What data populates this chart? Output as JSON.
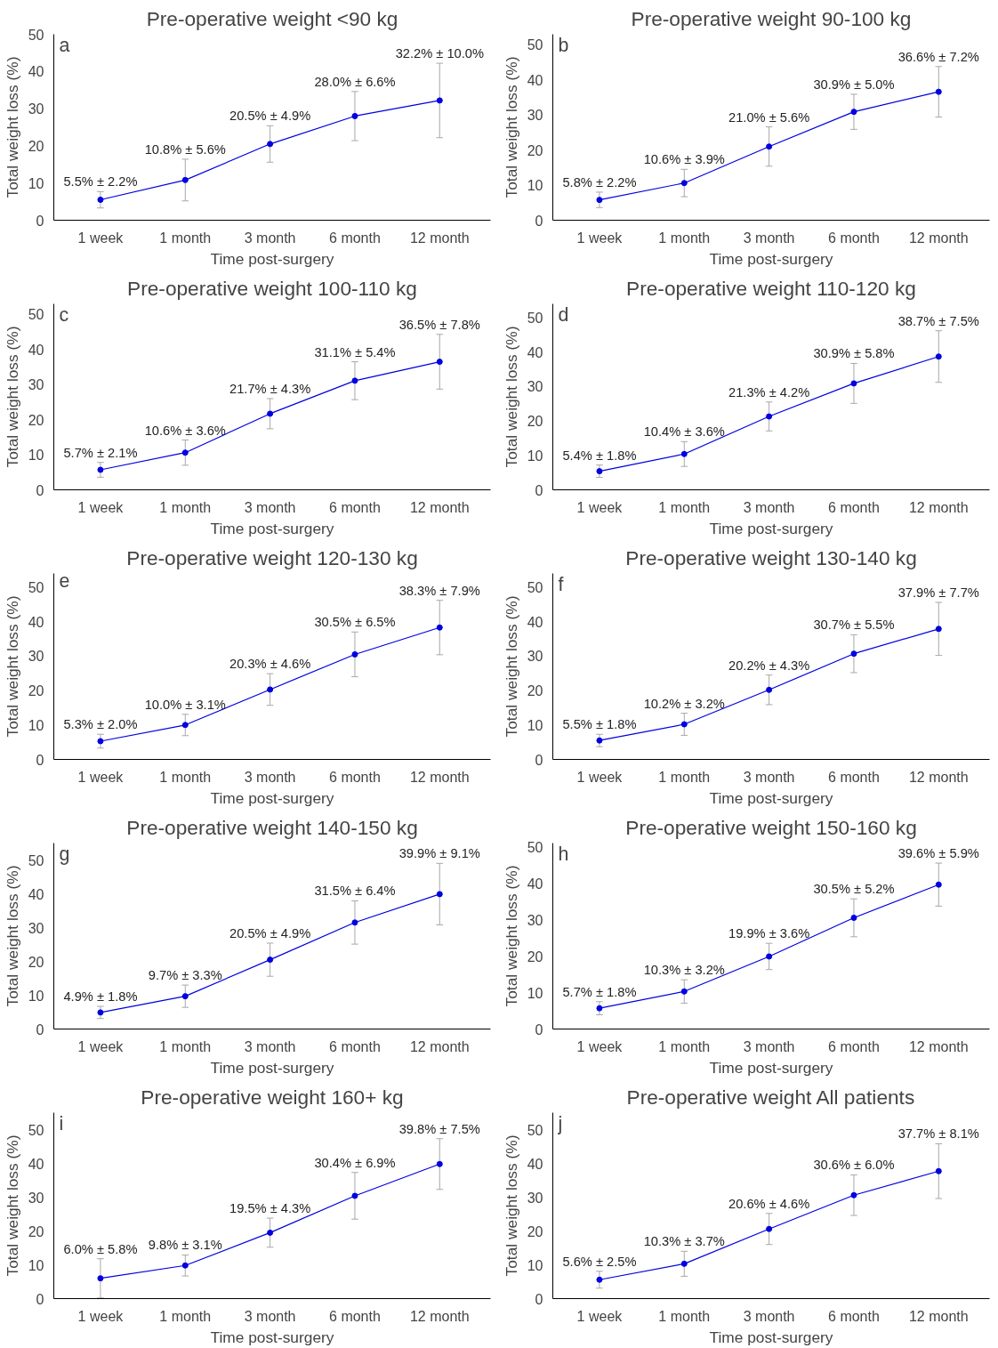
{
  "chart_data": [
    {
      "type": "line",
      "title": "Pre-operative weight <90 kg",
      "annotations": [
        "a"
      ],
      "xlabel": "Time post-surgery",
      "ylabel": "Total weight loss (%)",
      "categories": [
        "1 week",
        "1 month",
        "3 month",
        "6 month",
        "12 month"
      ],
      "values": [
        5.5,
        10.8,
        20.5,
        28.0,
        32.2
      ],
      "errors": [
        2.2,
        5.6,
        4.9,
        6.6,
        10.0
      ],
      "value_labels": [
        "5.5% ± 2.2%",
        "10.8% ± 5.6%",
        "20.5% ± 4.9%",
        "28.0% ± 6.6%",
        "32.2% ± 10.0%"
      ],
      "color": "#0000e0",
      "marker": "circle",
      "ylim": [
        0,
        50
      ],
      "yticks": [
        0,
        10,
        20,
        30,
        40,
        50
      ],
      "grid": false
    },
    {
      "type": "line",
      "title": "Pre-operative weight 90-100 kg",
      "annotations": [
        "b"
      ],
      "xlabel": "Time post-surgery",
      "ylabel": "Total weight loss (%)",
      "categories": [
        "1 week",
        "1 month",
        "3 month",
        "6 month",
        "12 month"
      ],
      "values": [
        5.8,
        10.6,
        21.0,
        30.9,
        36.6
      ],
      "errors": [
        2.2,
        3.9,
        5.6,
        5.0,
        7.2
      ],
      "value_labels": [
        "5.8% ± 2.2%",
        "10.6% ± 3.9%",
        "21.0% ± 5.6%",
        "30.9% ± 5.0%",
        "36.6% ± 7.2%"
      ],
      "color": "#0000e0",
      "marker": "circle",
      "ylim": [
        0,
        53
      ],
      "yticks": [
        0,
        10,
        20,
        30,
        40,
        50
      ],
      "grid": false
    },
    {
      "type": "line",
      "title": "Pre-operative weight 100-110 kg",
      "annotations": [
        "c"
      ],
      "xlabel": "Time post-surgery",
      "ylabel": "Total weight loss (%)",
      "categories": [
        "1 week",
        "1 month",
        "3 month",
        "6 month",
        "12 month"
      ],
      "values": [
        5.7,
        10.6,
        21.7,
        31.1,
        36.5
      ],
      "errors": [
        2.1,
        3.6,
        4.3,
        5.4,
        7.8
      ],
      "value_labels": [
        "5.7% ± 2.1%",
        "10.6% ± 3.6%",
        "21.7% ± 4.3%",
        "31.1% ± 5.4%",
        "36.5% ± 7.8%"
      ],
      "color": "#0000e0",
      "marker": "circle",
      "ylim": [
        0,
        53
      ],
      "yticks": [
        0,
        10,
        20,
        30,
        40,
        50
      ],
      "grid": false
    },
    {
      "type": "line",
      "title": "Pre-operative weight 110-120 kg",
      "annotations": [
        "d"
      ],
      "xlabel": "Time post-surgery",
      "ylabel": "Total weight loss (%)",
      "categories": [
        "1 week",
        "1 month",
        "3 month",
        "6 month",
        "12 month"
      ],
      "values": [
        5.4,
        10.4,
        21.3,
        30.9,
        38.7
      ],
      "errors": [
        1.8,
        3.6,
        4.2,
        5.8,
        7.5
      ],
      "value_labels": [
        "5.4% ± 1.8%",
        "10.4% ± 3.6%",
        "21.3% ± 4.2%",
        "30.9% ± 5.8%",
        "38.7% ± 7.5%"
      ],
      "color": "#0000e0",
      "marker": "circle",
      "ylim": [
        0,
        54
      ],
      "yticks": [
        0,
        10,
        20,
        30,
        40,
        50
      ],
      "grid": false
    },
    {
      "type": "line",
      "title": "Pre-operative weight 120-130 kg",
      "annotations": [
        "e"
      ],
      "xlabel": "Time post-surgery",
      "ylabel": "Total weight loss (%)",
      "categories": [
        "1 week",
        "1 month",
        "3 month",
        "6 month",
        "12 month"
      ],
      "values": [
        5.3,
        10.0,
        20.3,
        30.5,
        38.3
      ],
      "errors": [
        2.0,
        3.1,
        4.6,
        6.5,
        7.9
      ],
      "value_labels": [
        "5.3% ± 2.0%",
        "10.0% ± 3.1%",
        "20.3% ± 4.6%",
        "30.5% ± 6.5%",
        "38.3% ± 7.9%"
      ],
      "color": "#0000e0",
      "marker": "circle",
      "ylim": [
        0,
        54
      ],
      "yticks": [
        0,
        10,
        20,
        30,
        40,
        50
      ],
      "grid": false
    },
    {
      "type": "line",
      "title": "Pre-operative weight 130-140 kg",
      "annotations": [
        "f"
      ],
      "xlabel": "Time post-surgery",
      "ylabel": "Total weight loss (%)",
      "categories": [
        "1 week",
        "1 month",
        "3 month",
        "6 month",
        "12 month"
      ],
      "values": [
        5.5,
        10.2,
        20.2,
        30.7,
        37.9
      ],
      "errors": [
        1.8,
        3.2,
        4.3,
        5.5,
        7.7
      ],
      "value_labels": [
        "5.5% ± 1.8%",
        "10.2% ± 3.2%",
        "20.2% ± 4.3%",
        "30.7% ± 5.5%",
        "37.9% ± 7.7%"
      ],
      "color": "#0000e0",
      "marker": "circle",
      "ylim": [
        0,
        54
      ],
      "yticks": [
        0,
        10,
        20,
        30,
        40,
        50
      ],
      "grid": false
    },
    {
      "type": "line",
      "title": "Pre-operative weight 140-150 kg",
      "annotations": [
        "g"
      ],
      "xlabel": "Time post-surgery",
      "ylabel": "Total weight loss (%)",
      "categories": [
        "1 week",
        "1 month",
        "3 month",
        "6 month",
        "12 month"
      ],
      "values": [
        4.9,
        9.7,
        20.5,
        31.5,
        39.9
      ],
      "errors": [
        1.8,
        3.3,
        4.9,
        6.4,
        9.1
      ],
      "value_labels": [
        "4.9% ± 1.8%",
        "9.7% ± 3.3%",
        "20.5% ± 4.9%",
        "31.5% ± 6.4%",
        "39.9% ± 9.1%"
      ],
      "color": "#0000e0",
      "marker": "circle",
      "ylim": [
        0,
        55
      ],
      "yticks": [
        0,
        10,
        20,
        30,
        40,
        50
      ],
      "grid": false
    },
    {
      "type": "line",
      "title": "Pre-operative weight 150-160 kg",
      "annotations": [
        "h"
      ],
      "xlabel": "Time post-surgery",
      "ylabel": "Total weight loss (%)",
      "categories": [
        "1 week",
        "1 month",
        "3 month",
        "6 month",
        "12 month"
      ],
      "values": [
        5.7,
        10.3,
        19.9,
        30.5,
        39.6
      ],
      "errors": [
        1.8,
        3.2,
        3.6,
        5.2,
        5.9
      ],
      "value_labels": [
        "5.7% ± 1.8%",
        "10.3% ± 3.2%",
        "19.9% ± 3.6%",
        "30.5% ± 5.2%",
        "39.6% ± 5.9%"
      ],
      "color": "#0000e0",
      "marker": "circle",
      "ylim": [
        0,
        51
      ],
      "yticks": [
        0,
        10,
        20,
        30,
        40,
        50
      ],
      "grid": false
    },
    {
      "type": "line",
      "title": "Pre-operative weight 160+ kg",
      "annotations": [
        "i"
      ],
      "xlabel": "Time post-surgery",
      "ylabel": "Total weight loss (%)",
      "categories": [
        "1 week",
        "1 month",
        "3 month",
        "6 month",
        "12 month"
      ],
      "values": [
        6.0,
        9.8,
        19.5,
        30.4,
        39.8
      ],
      "errors": [
        5.8,
        3.1,
        4.3,
        6.9,
        7.5
      ],
      "value_labels": [
        "6.0% ± 5.8%",
        "9.8% ± 3.1%",
        "19.5% ± 4.3%",
        "30.4% ± 6.9%",
        "39.8% ± 7.5%"
      ],
      "color": "#0000e0",
      "marker": "circle",
      "ylim": [
        0,
        55
      ],
      "yticks": [
        0,
        10,
        20,
        30,
        40,
        50
      ],
      "grid": false
    },
    {
      "type": "line",
      "title": "Pre-operative weight All patients",
      "annotations": [
        "j"
      ],
      "xlabel": "Time post-surgery",
      "ylabel": "Total weight loss (%)",
      "categories": [
        "1 week",
        "1 month",
        "3 month",
        "6 month",
        "12 month"
      ],
      "values": [
        5.6,
        10.3,
        20.6,
        30.6,
        37.7
      ],
      "errors": [
        2.5,
        3.7,
        4.6,
        6.0,
        8.1
      ],
      "value_labels": [
        "5.6% ± 2.5%",
        "10.3% ± 3.7%",
        "20.6% ± 4.6%",
        "30.6% ± 6.0%",
        "37.7% ± 8.1%"
      ],
      "color": "#0000e0",
      "marker": "circle",
      "ylim": [
        0,
        55
      ],
      "yticks": [
        0,
        10,
        20,
        30,
        40,
        50
      ],
      "grid": false
    }
  ]
}
